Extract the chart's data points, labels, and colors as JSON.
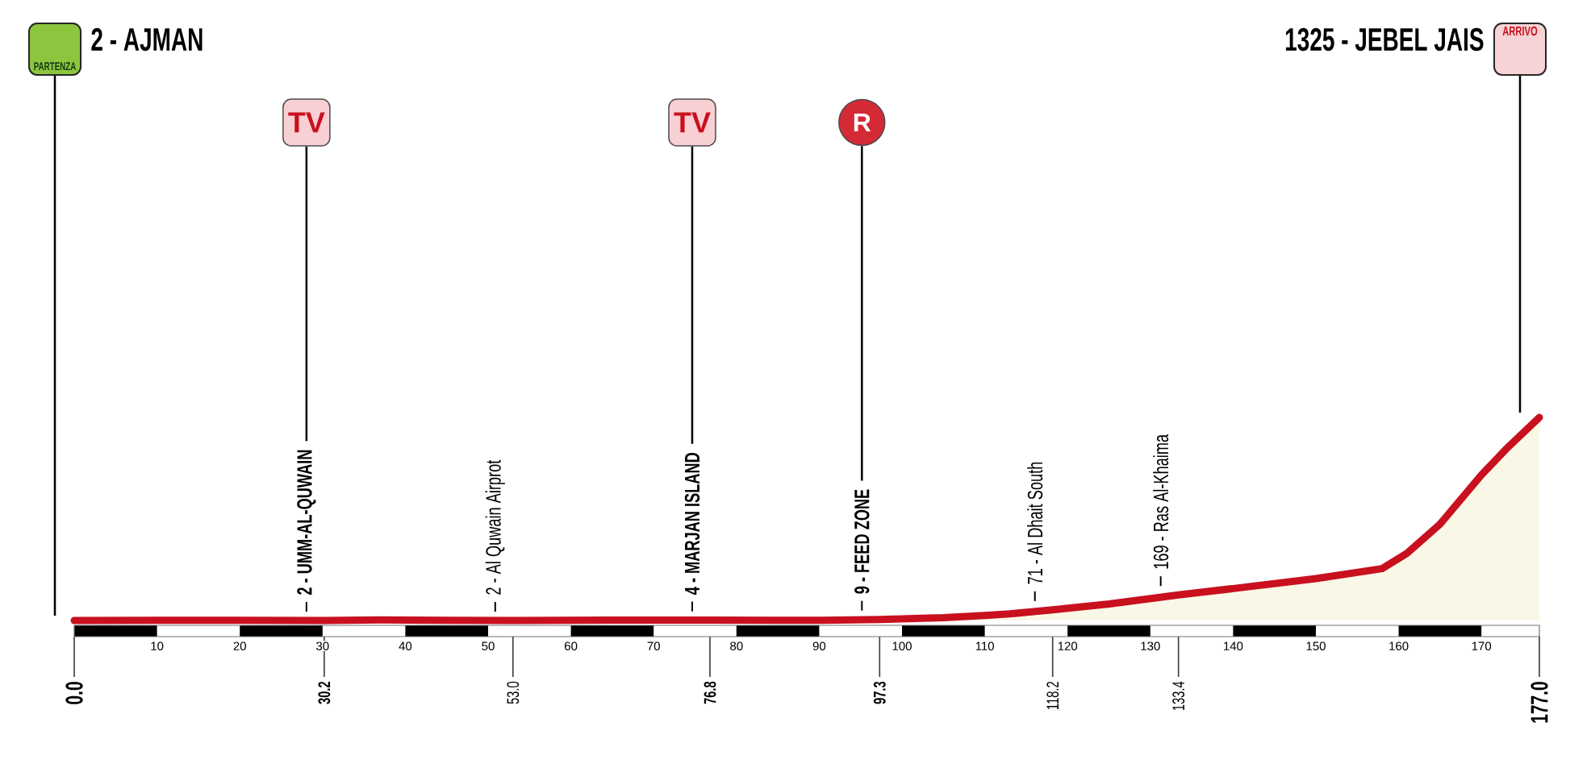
{
  "chart_data": {
    "type": "area",
    "x": [
      0,
      10,
      20,
      30.2,
      37,
      45,
      53.0,
      65,
      72,
      76.8,
      85,
      92,
      97.3,
      105,
      110,
      113,
      118.2,
      125,
      133.4,
      140,
      150,
      158,
      161,
      165,
      170,
      173,
      177
    ],
    "values": [
      2,
      3,
      3,
      2,
      6,
      3,
      2,
      4,
      5,
      4,
      3,
      4,
      9,
      20,
      35,
      45,
      71,
      110,
      169,
      210,
      275,
      340,
      440,
      630,
      950,
      1120,
      1325
    ],
    "value_labels": [
      null,
      null,
      null,
      "2 - UMM-AL-QUWAIN",
      null,
      null,
      "2 - Al Quwain Airprot",
      null,
      null,
      "4 - MARJAN ISLAND",
      null,
      null,
      "9 - FEED ZONE",
      null,
      null,
      null,
      "71 - Al Dhait South",
      null,
      "169 - Ras Al-Khaima",
      null,
      null,
      null,
      null,
      null,
      null,
      null,
      null
    ],
    "color": "#c8101e",
    "xlim": [
      0,
      177
    ],
    "xticks": [
      10,
      20,
      30,
      40,
      50,
      60,
      70,
      80,
      90,
      100,
      110,
      120,
      130,
      140,
      150,
      160,
      170
    ],
    "x2lim": [
      0,
      177
    ],
    "x2ticks": [
      {
        "value": 0,
        "label": "0.0"
      },
      30.2,
      {
        "value": 53,
        "label": "53.0"
      },
      76.8,
      97.3,
      118.2,
      133.4,
      {
        "value": 177,
        "label": "177.0"
      }
    ],
    "tick_labels": "x",
    "annotations": [
      "2 - AJMAN",
      "1325 - JEBEL JAIS",
      "PARTENZA",
      "ARRIVO",
      "TV",
      "TV",
      "R"
    ]
  }
}
